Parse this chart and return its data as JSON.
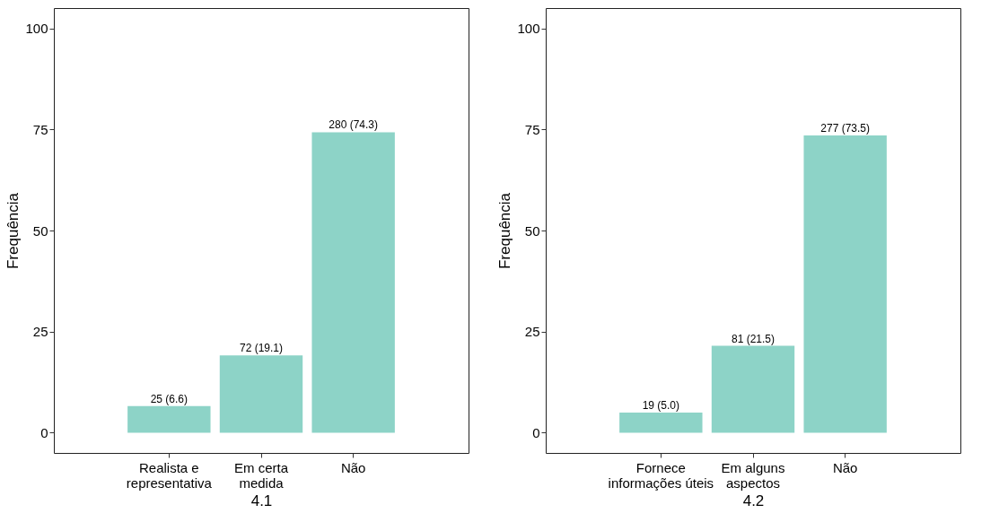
{
  "chart_data": [
    {
      "type": "bar",
      "xlabel": "4.1",
      "ylabel": "Frequência",
      "categories": [
        "Realista e\nrepresentativa",
        "Em certa\nmedida",
        "Não"
      ],
      "values": [
        6.6,
        19.1,
        74.3
      ],
      "value_labels": [
        "25 (6.6)",
        "72 (19.1)",
        "280 (74.3)"
      ],
      "color": "#8dd3c7",
      "ylim": [
        -5,
        105
      ],
      "yticks": [
        0,
        25,
        50,
        75,
        100
      ],
      "grid": false
    },
    {
      "type": "bar",
      "xlabel": "4.2",
      "ylabel": "Frequência",
      "categories": [
        "Fornece\ninformações úteis",
        "Em alguns\naspectos",
        "Não"
      ],
      "values": [
        5.0,
        21.5,
        73.5
      ],
      "value_labels": [
        "19 (5.0)",
        "81 (21.5)",
        "277 (73.5)"
      ],
      "color": "#8dd3c7",
      "ylim": [
        -5,
        105
      ],
      "yticks": [
        0,
        25,
        50,
        75,
        100
      ],
      "grid": false
    }
  ]
}
